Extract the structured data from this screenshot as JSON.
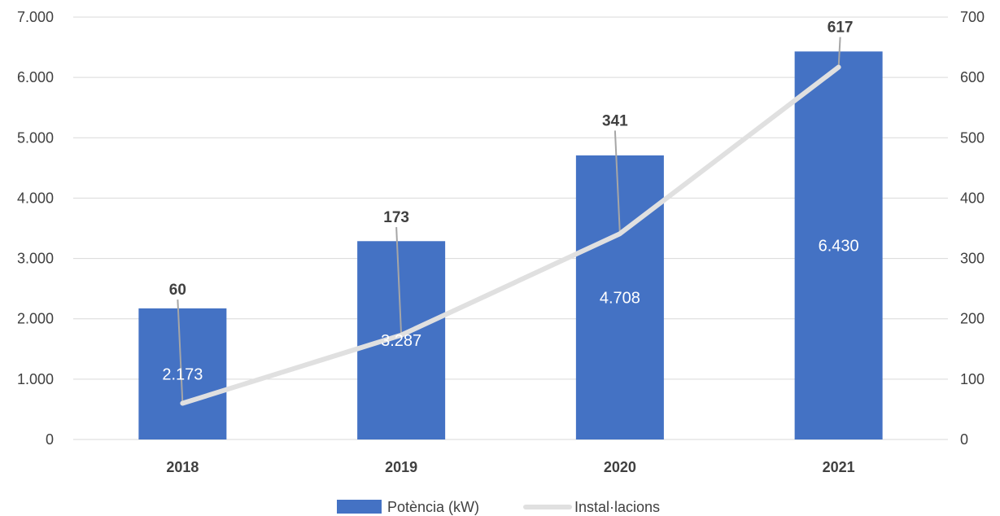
{
  "chart_data": {
    "type": "bar",
    "categories": [
      "2018",
      "2019",
      "2020",
      "2021"
    ],
    "series": [
      {
        "name": "Potència (kW)",
        "type": "bar",
        "axis": "left",
        "color": "#4472C4",
        "values": [
          2173,
          3287,
          4708,
          6430
        ],
        "labels": [
          "2.173",
          "3.287",
          "4.708",
          "6.430"
        ]
      },
      {
        "name": "Instal·lacions",
        "type": "line",
        "axis": "right",
        "color": "#E0E0E0",
        "values": [
          60,
          173,
          341,
          617
        ],
        "labels": [
          "60",
          "173",
          "341",
          "617"
        ]
      }
    ],
    "y_left": {
      "ylim": [
        0,
        7000
      ],
      "ticks": [
        0,
        1000,
        2000,
        3000,
        4000,
        5000,
        6000,
        7000
      ],
      "tick_labels": [
        "0",
        "1.000",
        "2.000",
        "3.000",
        "4.000",
        "5.000",
        "6.000",
        "7.000"
      ]
    },
    "y_right": {
      "ylim": [
        0,
        700
      ],
      "ticks": [
        0,
        100,
        200,
        300,
        400,
        500,
        600,
        700
      ],
      "tick_labels": [
        "0",
        "100",
        "200",
        "300",
        "400",
        "500",
        "600",
        "700"
      ]
    },
    "grid": true,
    "legend_position": "bottom"
  }
}
